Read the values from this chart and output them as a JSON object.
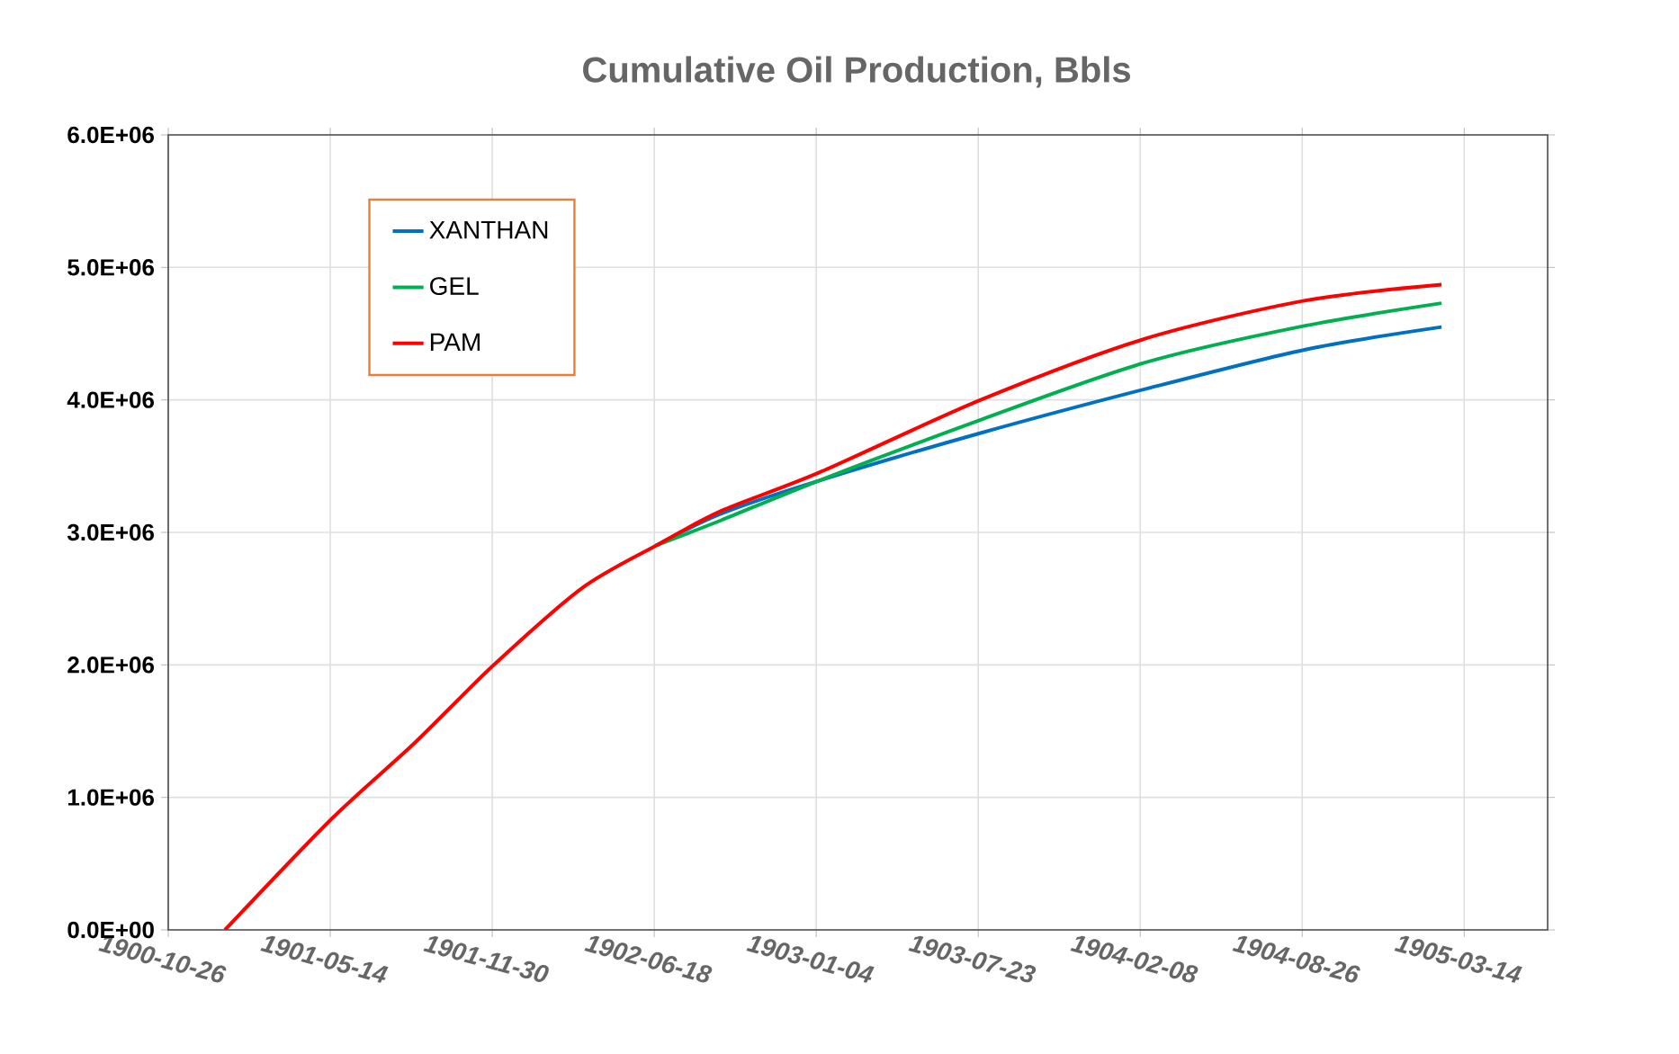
{
  "chart_data": {
    "type": "line",
    "title": "Cumulative Oil Production, Bbls",
    "xlim": [
      "1900-10-26",
      "1905-06-25"
    ],
    "xticks": [
      "1900-10-26",
      "1901-05-14",
      "1901-11-30",
      "1902-06-18",
      "1903-01-04",
      "1903-07-23",
      "1904-02-08",
      "1904-08-26",
      "1905-03-14"
    ],
    "ylim": [
      0,
      6000000
    ],
    "yticks": [
      {
        "value": 0,
        "label": "0.0E+00"
      },
      {
        "value": 1000000,
        "label": "1.0E+06"
      },
      {
        "value": 2000000,
        "label": "2.0E+06"
      },
      {
        "value": 3000000,
        "label": "3.0E+06"
      },
      {
        "value": 4000000,
        "label": "4.0E+06"
      },
      {
        "value": 5000000,
        "label": "5.0E+06"
      },
      {
        "value": 6000000,
        "label": "6.0E+06"
      }
    ],
    "grid": true,
    "legend": "top left",
    "marker": "none",
    "line_style": "solid",
    "series": [
      {
        "name": "XANTHAN",
        "color": "#0070c0",
        "x": [
          "1902-06-20",
          "1902-09-08",
          "1903-01-07",
          "1903-07-26",
          "1904-02-13",
          "1904-08-30",
          "1905-02-14"
        ],
        "values": [
          2900000,
          3140000,
          3390000,
          3750000,
          4080000,
          4380000,
          4550000
        ]
      },
      {
        "name": "GEL",
        "color": "#00b050",
        "x": [
          "1902-06-20",
          "1902-09-08",
          "1903-01-07",
          "1903-07-26",
          "1904-02-13",
          "1904-08-30",
          "1905-02-14"
        ],
        "values": [
          2900000,
          3090000,
          3390000,
          3850000,
          4280000,
          4560000,
          4730000
        ]
      },
      {
        "name": "PAM",
        "color": "#ff0000",
        "x": [
          "1901-01-04",
          "1901-05-16",
          "1901-08-26",
          "1901-12-02",
          "1902-03-21",
          "1902-06-20",
          "1902-09-08",
          "1903-01-07",
          "1903-07-26",
          "1904-02-13",
          "1904-08-30",
          "1905-02-14"
        ],
        "values": [
          0,
          840000,
          1410000,
          2000000,
          2580000,
          2900000,
          3160000,
          3450000,
          4000000,
          4460000,
          4750000,
          4870000
        ]
      }
    ]
  }
}
